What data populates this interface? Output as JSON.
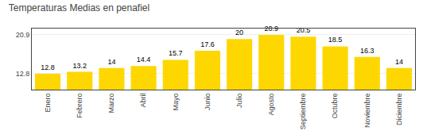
{
  "chart_data": {
    "type": "bar",
    "title": "Temperaturas Medias en penafiel",
    "categories": [
      "Enero",
      "Febrero",
      "Marzo",
      "Abril",
      "Mayo",
      "Junio",
      "Julio",
      "Agosto",
      "Septiembre",
      "Octubre",
      "Noviembre",
      "Diciembre"
    ],
    "values": [
      12.8,
      13.2,
      14.0,
      14.4,
      15.7,
      17.6,
      20.0,
      20.9,
      20.5,
      18.5,
      16.3,
      14.0
    ],
    "color": "#FFD700",
    "ylim": [
      9.5,
      22.2
    ],
    "yticks": [
      12.8,
      20.9
    ],
    "grid": true,
    "data_labels": true
  }
}
